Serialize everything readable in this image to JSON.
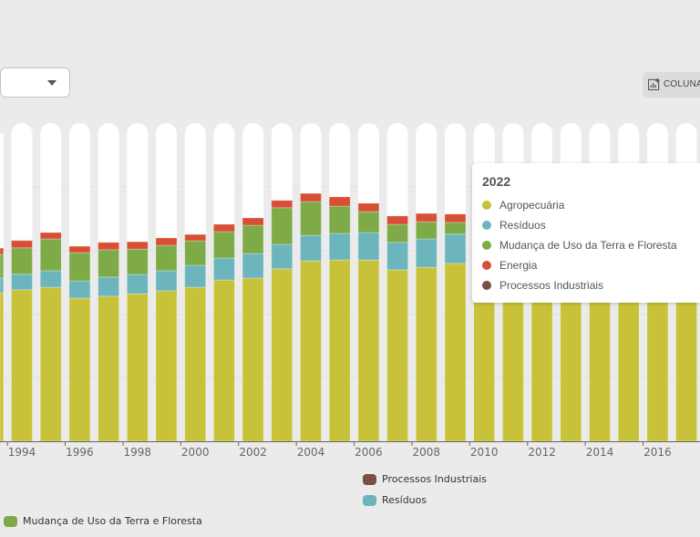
{
  "toolbar": {
    "column_button_label": "COLUNA",
    "column_button_icon": "chart-add-icon",
    "dropdown_icon": "caret-down-icon"
  },
  "colors": {
    "Agropecuária": "#c8c23a",
    "Resíduos": "#6cb5bd",
    "Mudança de Uso da Terra e Floresta": "#7eab48",
    "Energia": "#d94f35",
    "Processos Industriais": "#7b4f45"
  },
  "tooltip": {
    "title": "2022",
    "items": [
      "Agropecuária",
      "Resíduos",
      "Mudança de Uso da Terra e Floresta",
      "Energia",
      "Processos Industriais"
    ]
  },
  "legend": {
    "items": [
      "Mudança de Uso da Terra e Floresta",
      "Processos Industriais",
      "Resíduos"
    ]
  },
  "chart_data": {
    "type": "bar",
    "stacked": true,
    "x": [
      1993,
      1994,
      1995,
      1996,
      1997,
      1998,
      1999,
      2000,
      2001,
      2002,
      2003,
      2004,
      2005,
      2006,
      2007,
      2008,
      2009,
      2010,
      2011,
      2012,
      2013,
      2014,
      2015,
      2016,
      2017
    ],
    "xtick_labels": [
      "1994",
      "1996",
      "1998",
      "2000",
      "2002",
      "2004",
      "2006",
      "2008",
      "2010",
      "2012",
      "2014",
      "2016"
    ],
    "ylim": [
      0,
      100
    ],
    "grid": true,
    "legend_position": "bottom",
    "series": [
      {
        "name": "Agropecuária",
        "values": [
          46.7,
          47.6,
          48.4,
          45.0,
          45.6,
          46.4,
          47.3,
          48.4,
          50.7,
          51.3,
          54.2,
          56.7,
          57.0,
          57.0,
          53.9,
          54.7,
          55.9,
          57,
          57,
          57,
          57,
          57,
          57,
          57,
          57
        ]
      },
      {
        "name": "Resíduos",
        "values": [
          4.6,
          4.9,
          5.2,
          5.4,
          6.0,
          6.0,
          6.3,
          6.9,
          6.9,
          7.7,
          7.7,
          8.0,
          8.3,
          8.6,
          8.6,
          8.9,
          9.2,
          9.2,
          9.2,
          9.2,
          9.2,
          9.2,
          9.2,
          9.2,
          9.2
        ]
      },
      {
        "name": "Mudança de Uso da Terra e Floresta",
        "values": [
          7.4,
          8.3,
          10.0,
          8.9,
          8.6,
          8.0,
          8.0,
          7.7,
          8.3,
          8.9,
          11.5,
          10.6,
          8.6,
          6.6,
          5.7,
          5.4,
          3.7,
          3.7,
          3.7,
          3.7,
          3.7,
          3.7,
          3.7,
          3.7,
          3.7
        ]
      },
      {
        "name": "Energia",
        "values": [
          2.0,
          2.3,
          2.0,
          2.0,
          2.3,
          2.3,
          2.3,
          2.0,
          2.3,
          2.3,
          2.3,
          2.6,
          2.9,
          2.6,
          2.6,
          2.6,
          2.6,
          2.6,
          2.6,
          2.6,
          2.6,
          2.6,
          2.6,
          2.6,
          2.6
        ]
      },
      {
        "name": "Processos Industriais",
        "values": [
          0,
          0,
          0,
          0,
          0,
          0,
          0,
          0,
          0,
          0,
          0,
          0,
          0,
          0,
          0,
          0,
          0,
          0,
          0,
          0,
          0,
          0,
          0,
          0,
          0
        ]
      }
    ]
  }
}
